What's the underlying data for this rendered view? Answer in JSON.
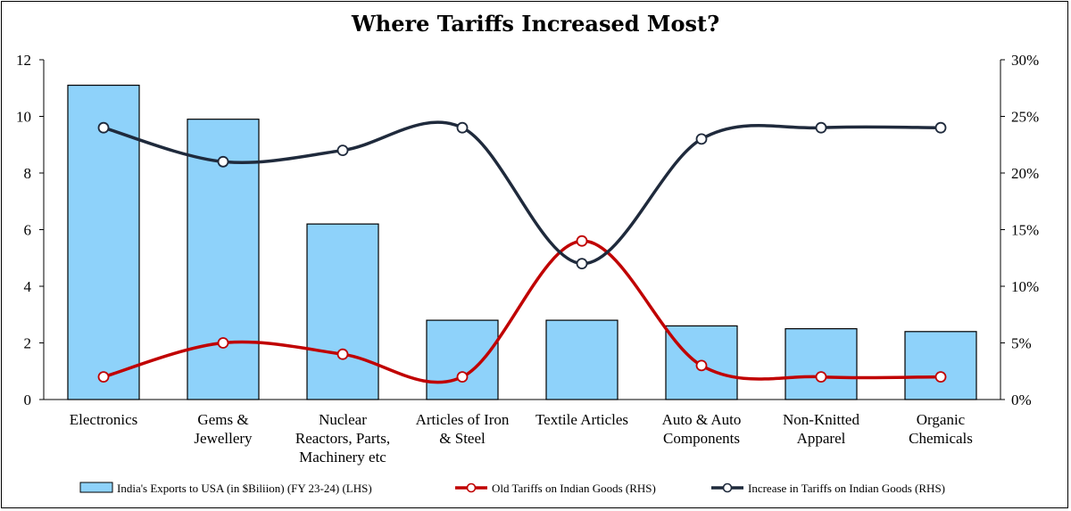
{
  "chart_data": {
    "type": "bar",
    "title": "Where Tariffs Increased Most?",
    "categories": [
      [
        "Electronics"
      ],
      [
        "Gems &",
        "Jewellery"
      ],
      [
        "Nuclear",
        "Reactors, Parts,",
        "Machinery etc"
      ],
      [
        "Articles of Iron",
        "& Steel"
      ],
      [
        "Textile Articles"
      ],
      [
        "Auto & Auto",
        "Components"
      ],
      [
        "Non-Knitted",
        "Apparel"
      ],
      [
        "Organic",
        "Chemicals"
      ]
    ],
    "series": [
      {
        "name": "India's Exports to USA (in $Biliion) (FY 23-24) (LHS)",
        "type": "bar",
        "axis": "left",
        "color": "#8ed2fa",
        "values": [
          11.1,
          9.9,
          6.2,
          2.8,
          2.8,
          2.6,
          2.5,
          2.4
        ]
      },
      {
        "name": "Old Tariffs on Indian Goods (RHS)",
        "type": "line",
        "axis": "right",
        "color": "#c00000",
        "values": [
          0.02,
          0.05,
          0.04,
          0.02,
          0.14,
          0.03,
          0.02,
          0.02
        ]
      },
      {
        "name": "Increase in Tariffs on Indian Goods (RHS)",
        "type": "line",
        "axis": "right",
        "color": "#1f2a3c",
        "values": [
          0.24,
          0.21,
          0.22,
          0.24,
          0.12,
          0.23,
          0.24,
          0.24
        ]
      }
    ],
    "y_left": {
      "min": 0,
      "max": 12,
      "ticks": [
        "0",
        "2",
        "4",
        "6",
        "8",
        "10",
        "12"
      ]
    },
    "y_right": {
      "min": 0,
      "max": 0.3,
      "ticks": [
        "0%",
        "5%",
        "10%",
        "15%",
        "20%",
        "25%",
        "30%"
      ]
    },
    "legend": "bottom",
    "grid": false
  }
}
